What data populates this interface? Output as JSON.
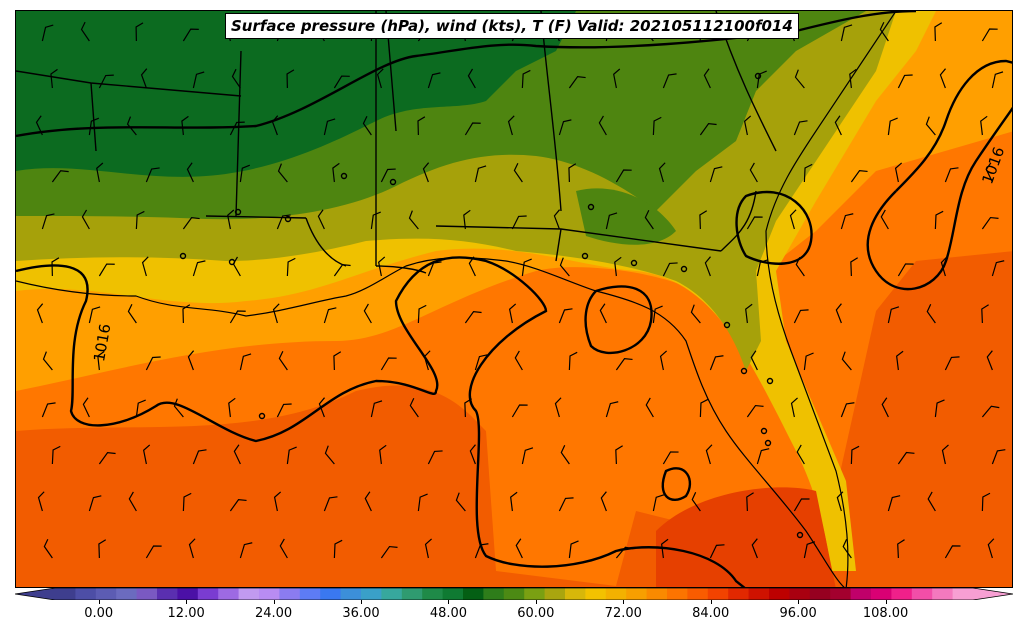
{
  "title": "Surface pressure (hPa), wind (kts), T (F) Valid: 202105112100f014",
  "isobar_labels": [
    "1016",
    "1016"
  ],
  "colorbar": {
    "ticks": [
      "0.00",
      "12.00",
      "24.00",
      "36.00",
      "48.00",
      "60.00",
      "72.00",
      "84.00",
      "96.00",
      "108.00"
    ],
    "min": -6,
    "max": 120,
    "colors": [
      "#3e3e8e",
      "#4d4ea6",
      "#5c5cb3",
      "#6b6bbf",
      "#7a59c2",
      "#5a2fb0",
      "#4b10a6",
      "#7a3cd1",
      "#9d6ae3",
      "#c19af0",
      "#b88cf2",
      "#8b7cf0",
      "#5d7cf5",
      "#3a78f0",
      "#3c8fd9",
      "#3aa0c8",
      "#37a89d",
      "#2f9b70",
      "#1f8a48",
      "#0f7a32",
      "#045f14",
      "#2e7d1a",
      "#4c8a14",
      "#7aa012",
      "#a9a50f",
      "#d7b70a",
      "#f2c200",
      "#f3b100",
      "#f79f00",
      "#fa8a00",
      "#fc7400",
      "#f95c00",
      "#f24300",
      "#e22800",
      "#cf1200",
      "#bd0000",
      "#a90010",
      "#960020",
      "#a3002e",
      "#c0006a",
      "#d90074",
      "#f0208a",
      "#f24ea8",
      "#f479be",
      "#f79fd3"
    ]
  },
  "legend_colors": {
    "t90": "#e64000",
    "t84": "#f25c00",
    "t78": "#ff7700",
    "t72": "#ff9f00",
    "t66": "#efc100",
    "t60": "#a6a10a",
    "t54": "#4e8510",
    "t48": "#2d7b1d",
    "t42": "#0c6b20",
    "t36": "#126f2a"
  }
}
